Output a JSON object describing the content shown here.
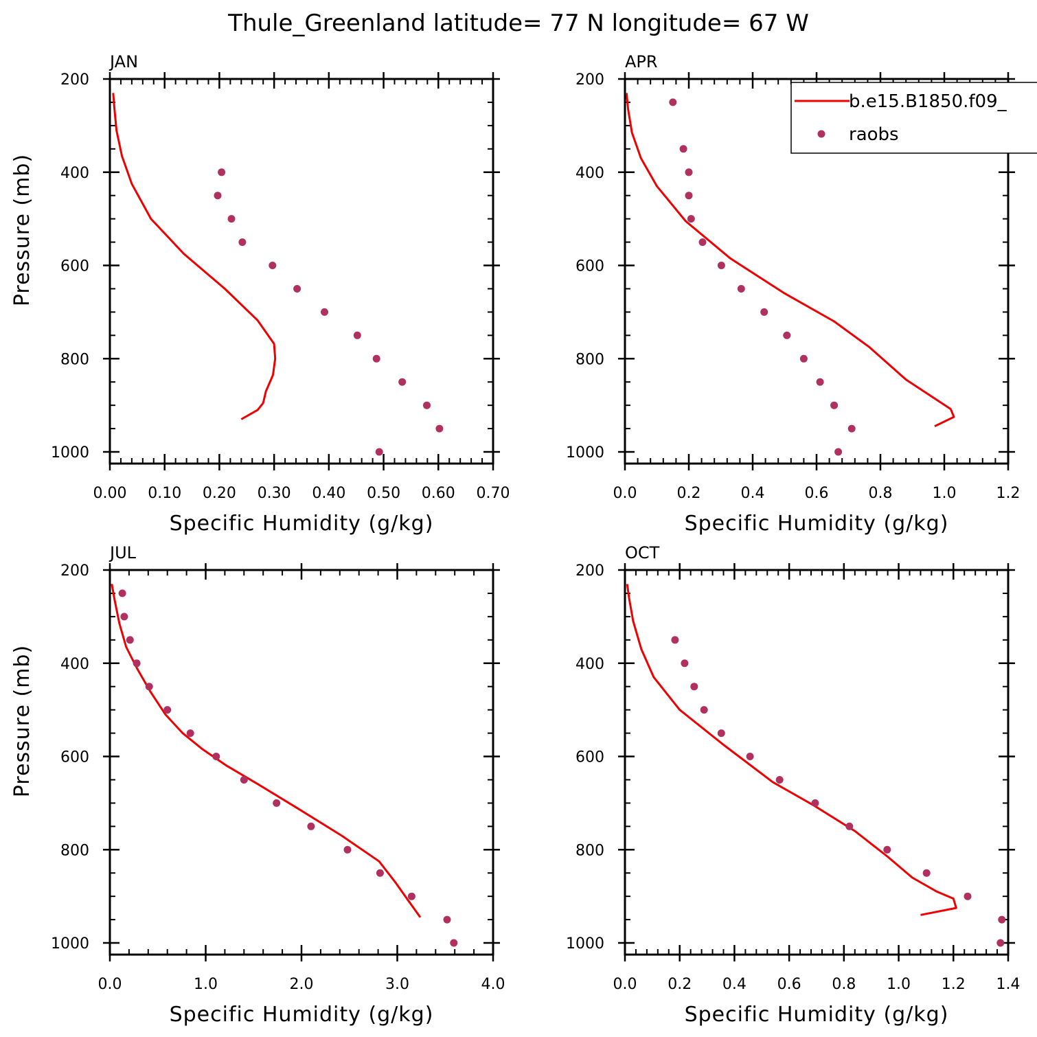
{
  "title": "Thule_Greenland  latitude= 77 N longitude= 67 W",
  "colors": {
    "model": "#ee0000",
    "obs": "#b03060",
    "axis": "#000000"
  },
  "legend": {
    "placement": "top-right",
    "model_label": "b.e15.B1850.f09_",
    "obs_label": "raobs"
  },
  "chart_data": [
    {
      "type": "line",
      "panel": "JAN",
      "xlabel": "Specific Humidity (g/kg)",
      "ylabel": "Pressure (mb)",
      "xlim": [
        0,
        0.7
      ],
      "ylim": [
        200,
        1025
      ],
      "y_inverted": true,
      "x_ticks": [
        "0.00",
        "0.10",
        "0.20",
        "0.30",
        "0.40",
        "0.50",
        "0.60",
        "0.70"
      ],
      "x_tick_values": [
        0,
        0.1,
        0.2,
        0.3,
        0.4,
        0.5,
        0.6,
        0.7
      ],
      "y_ticks": [
        "200",
        "400",
        "600",
        "800",
        "1000"
      ],
      "y_tick_values": [
        200,
        400,
        600,
        800,
        1000
      ],
      "series": [
        {
          "role": "model",
          "mark": "line",
          "x": [
            0.006,
            0.008,
            0.012,
            0.022,
            0.04,
            0.075,
            0.135,
            0.21,
            0.27,
            0.3,
            0.302,
            0.298,
            0.285,
            0.28,
            0.27,
            0.24
          ],
          "y": [
            230,
            260,
            310,
            365,
            425,
            500,
            575,
            650,
            718,
            768,
            800,
            835,
            870,
            895,
            910,
            930
          ]
        },
        {
          "role": "obs",
          "mark": "scatter",
          "x": [
            0.204,
            0.197,
            0.222,
            0.242,
            0.297,
            0.342,
            0.392,
            0.452,
            0.487,
            0.534,
            0.579,
            0.602,
            0.492
          ],
          "y": [
            400,
            450,
            500,
            550,
            600,
            650,
            700,
            750,
            800,
            850,
            900,
            950,
            1000
          ]
        }
      ]
    },
    {
      "type": "line",
      "panel": "APR",
      "xlabel": "Specific Humidity (g/kg)",
      "ylabel": "",
      "xlim": [
        0,
        1.2
      ],
      "ylim": [
        200,
        1025
      ],
      "y_inverted": true,
      "x_ticks": [
        "0.0",
        "0.2",
        "0.4",
        "0.6",
        "0.8",
        "1.0",
        "1.2"
      ],
      "x_tick_values": [
        0,
        0.2,
        0.4,
        0.6,
        0.8,
        1.0,
        1.2
      ],
      "y_ticks": [
        "200",
        "400",
        "600",
        "800",
        "1000"
      ],
      "y_tick_values": [
        200,
        400,
        600,
        800,
        1000
      ],
      "series": [
        {
          "role": "model",
          "mark": "line",
          "x": [
            0.005,
            0.01,
            0.022,
            0.05,
            0.1,
            0.19,
            0.33,
            0.5,
            0.655,
            0.765,
            0.88,
            0.98,
            1.02,
            1.03,
            0.97
          ],
          "y": [
            230,
            265,
            315,
            370,
            430,
            505,
            585,
            660,
            720,
            775,
            845,
            890,
            908,
            925,
            945
          ]
        },
        {
          "role": "obs",
          "mark": "scatter",
          "x": [
            0.15,
            0.183,
            0.2,
            0.2,
            0.207,
            0.243,
            0.302,
            0.364,
            0.436,
            0.507,
            0.56,
            0.611,
            0.655,
            0.71,
            0.668
          ],
          "y": [
            250,
            350,
            400,
            450,
            500,
            550,
            600,
            650,
            700,
            750,
            800,
            850,
            900,
            950,
            1000
          ]
        }
      ]
    },
    {
      "type": "line",
      "panel": "JUL",
      "xlabel": "Specific Humidity (g/kg)",
      "ylabel": "Pressure (mb)",
      "xlim": [
        0,
        4.0
      ],
      "ylim": [
        200,
        1025
      ],
      "y_inverted": true,
      "x_ticks": [
        "0.0",
        "1.0",
        "2.0",
        "3.0",
        "4.0"
      ],
      "x_tick_values": [
        0,
        1,
        2,
        3,
        4
      ],
      "y_ticks": [
        "200",
        "400",
        "600",
        "800",
        "1000"
      ],
      "y_tick_values": [
        200,
        400,
        600,
        800,
        1000
      ],
      "series": [
        {
          "role": "model",
          "mark": "line",
          "x": [
            0.02,
            0.05,
            0.1,
            0.17,
            0.28,
            0.42,
            0.58,
            0.76,
            0.97,
            1.22,
            1.55,
            1.95,
            2.42,
            2.81,
            2.98,
            3.1,
            3.24
          ],
          "y": [
            230,
            265,
            315,
            365,
            410,
            460,
            510,
            550,
            585,
            620,
            660,
            710,
            770,
            825,
            870,
            905,
            945
          ]
        },
        {
          "role": "obs",
          "mark": "scatter",
          "x": [
            0.13,
            0.15,
            0.21,
            0.28,
            0.41,
            0.6,
            0.84,
            1.11,
            1.4,
            1.74,
            2.1,
            2.48,
            2.82,
            3.15,
            3.52,
            3.59
          ],
          "y": [
            250,
            300,
            350,
            400,
            450,
            500,
            550,
            600,
            650,
            700,
            750,
            800,
            850,
            900,
            950,
            1000
          ]
        }
      ]
    },
    {
      "type": "line",
      "panel": "OCT",
      "xlabel": "Specific Humidity (g/kg)",
      "ylabel": "",
      "xlim": [
        0,
        1.4
      ],
      "ylim": [
        200,
        1025
      ],
      "y_inverted": true,
      "x_ticks": [
        "0.0",
        "0.2",
        "0.4",
        "0.6",
        "0.8",
        "1.0",
        "1.2",
        "1.4"
      ],
      "x_tick_values": [
        0,
        0.2,
        0.4,
        0.6,
        0.8,
        1.0,
        1.2,
        1.4
      ],
      "y_ticks": [
        "200",
        "400",
        "600",
        "800",
        "1000"
      ],
      "y_tick_values": [
        200,
        400,
        600,
        800,
        1000
      ],
      "series": [
        {
          "role": "model",
          "mark": "line",
          "x": [
            0.008,
            0.015,
            0.03,
            0.06,
            0.105,
            0.2,
            0.36,
            0.54,
            0.69,
            0.84,
            0.96,
            1.05,
            1.14,
            1.2,
            1.21,
            1.08
          ],
          "y": [
            230,
            260,
            310,
            370,
            430,
            500,
            575,
            655,
            705,
            760,
            815,
            860,
            890,
            905,
            925,
            940
          ]
        },
        {
          "role": "obs",
          "mark": "scatter",
          "x": [
            0.183,
            0.218,
            0.253,
            0.289,
            0.352,
            0.457,
            0.565,
            0.695,
            0.82,
            0.958,
            1.102,
            1.252,
            1.377,
            1.372
          ],
          "y": [
            350,
            400,
            450,
            500,
            550,
            600,
            650,
            700,
            750,
            800,
            850,
            900,
            950,
            1000
          ]
        }
      ]
    }
  ]
}
